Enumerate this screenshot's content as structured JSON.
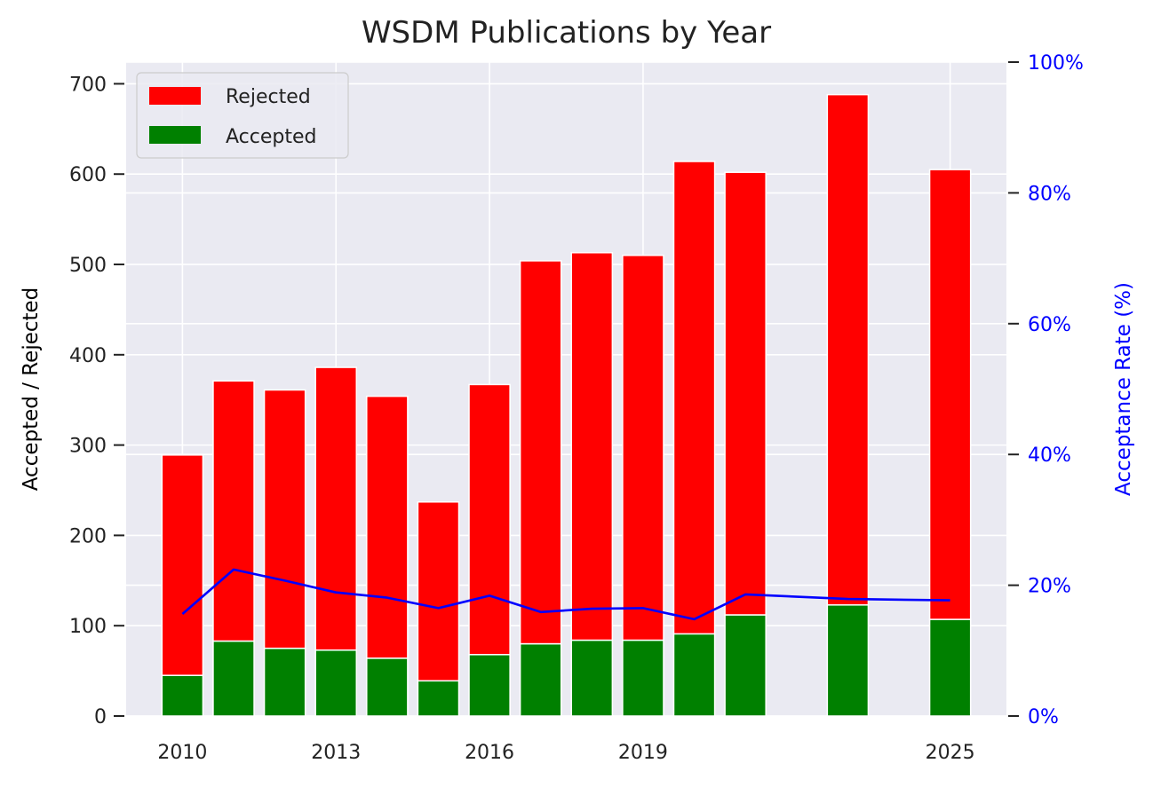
{
  "chart_data": {
    "type": "bar",
    "stacked": true,
    "title": "WSDM Publications by Year",
    "ylabel": "Accepted / Rejected",
    "ylabel_right": "Acceptance Rate (%)",
    "ylim": [
      0,
      724
    ],
    "ylim_right": [
      0,
      100
    ],
    "xlim": [
      2008.9,
      2026.1
    ],
    "x_ticks": [
      "2010",
      "2013",
      "2016",
      "2019",
      "2025"
    ],
    "y_ticks": [
      "0",
      "100",
      "200",
      "300",
      "400",
      "500",
      "600",
      "700"
    ],
    "y_ticks_right": [
      "0%",
      "20%",
      "40%",
      "60%",
      "80%",
      "100%"
    ],
    "legend": {
      "position": "top-left",
      "entries": [
        "Rejected",
        "Accepted"
      ]
    },
    "grid": true,
    "colors": {
      "rejected": "#ff0000",
      "accepted": "#008000",
      "rate_line": "#0000ff",
      "background": "#eaeaf2",
      "grid": "#ffffff"
    },
    "x": [
      2010,
      2011,
      2012,
      2013,
      2014,
      2015,
      2016,
      2017,
      2018,
      2019,
      2020,
      2021,
      2023,
      2025
    ],
    "series": [
      {
        "name": "Accepted",
        "values": [
          45,
          83,
          75,
          73,
          64,
          39,
          68,
          80,
          84,
          84,
          91,
          112,
          123,
          107
        ]
      },
      {
        "name": "Rejected",
        "values": [
          244,
          288,
          286,
          313,
          290,
          198,
          299,
          424,
          429,
          426,
          523,
          490,
          565,
          498
        ]
      }
    ],
    "rate_series": {
      "x": [
        2010,
        2011,
        2012,
        2013,
        2014,
        2015,
        2016,
        2017,
        2018,
        2019,
        2020,
        2021,
        2023,
        2025
      ],
      "values": [
        15.6,
        22.4,
        20.7,
        18.9,
        18.1,
        16.5,
        18.4,
        15.9,
        16.4,
        16.5,
        14.8,
        18.6,
        17.9,
        17.7
      ]
    }
  }
}
